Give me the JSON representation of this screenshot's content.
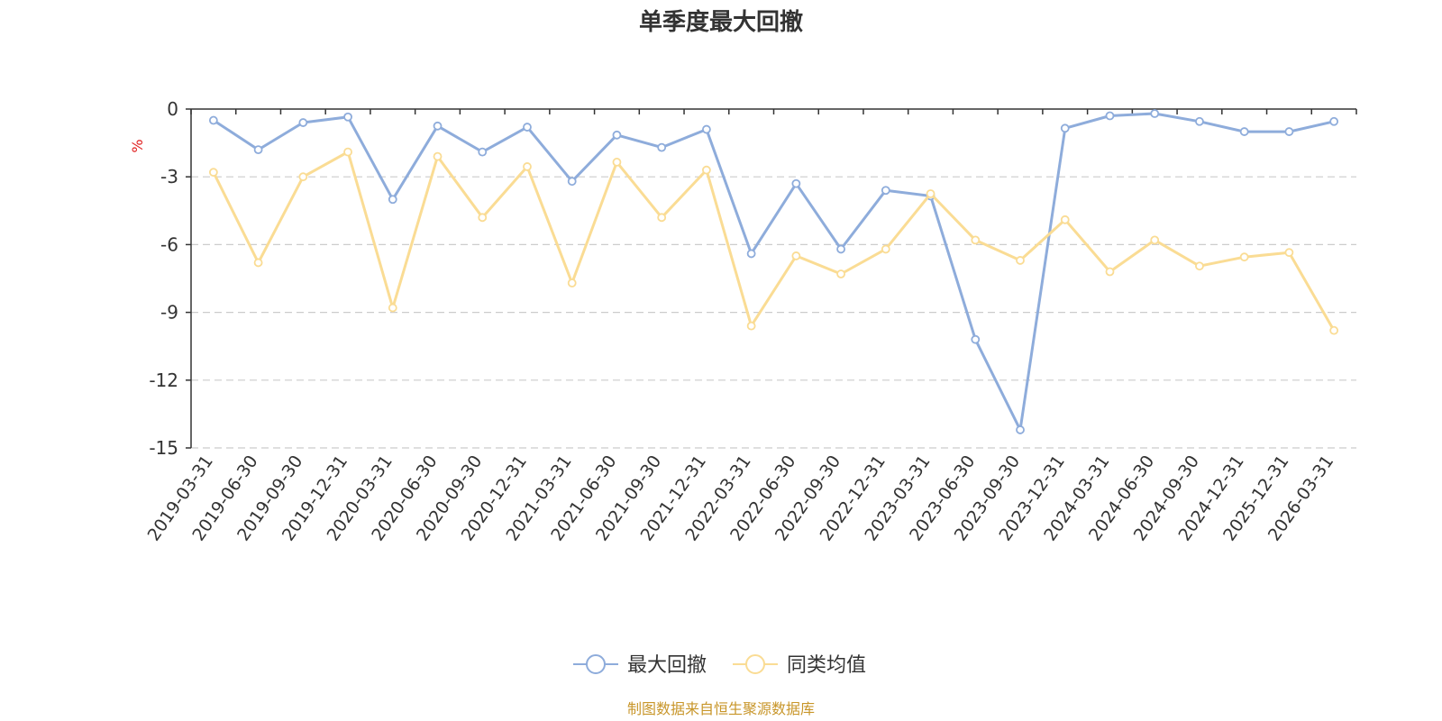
{
  "chart_data": {
    "type": "line",
    "title": "单季度最大回撤",
    "ylabel": "%",
    "ylim": [
      -15,
      0
    ],
    "yticks": [
      0,
      -3,
      -6,
      -9,
      -12,
      -15
    ],
    "grid": true,
    "legend_position": "bottom",
    "categories": [
      "2019-03-31",
      "2019-06-30",
      "2019-09-30",
      "2019-12-31",
      "2020-03-31",
      "2020-06-30",
      "2020-09-30",
      "2020-12-31",
      "2021-03-31",
      "2021-06-30",
      "2021-09-30",
      "2021-12-31",
      "2022-03-31",
      "2022-06-30",
      "2022-09-30",
      "2022-12-31",
      "2023-03-31",
      "2023-06-30",
      "2023-09-30",
      "2023-12-31",
      "2024-03-31",
      "2024-06-30",
      "2024-09-30",
      "2024-12-31",
      "2025-12-31",
      "2026-03-31"
    ],
    "series": [
      {
        "name": "最大回撤",
        "color": "#8eacdb",
        "values": [
          -0.5,
          -1.8,
          -0.6,
          -0.35,
          -4.0,
          -0.75,
          -1.9,
          -0.8,
          -3.2,
          -1.15,
          -1.7,
          -0.9,
          -6.4,
          -3.3,
          -6.2,
          -3.6,
          -3.85,
          -10.2,
          -14.2,
          -0.85,
          -0.3,
          -0.2,
          -0.55,
          -1.0,
          -1.0,
          -0.55
        ]
      },
      {
        "name": "同类均值",
        "color": "#fadc94",
        "values": [
          -2.8,
          -6.8,
          -3.0,
          -1.9,
          -8.8,
          -2.1,
          -4.8,
          -2.55,
          -7.7,
          -2.35,
          -4.8,
          -2.7,
          -9.6,
          -6.5,
          -7.3,
          -6.2,
          -3.75,
          -5.8,
          -6.7,
          -4.9,
          -7.2,
          -5.8,
          -6.95,
          -6.55,
          -6.35,
          -9.8
        ]
      }
    ]
  },
  "source_note": "制图数据来自恒生聚源数据库"
}
